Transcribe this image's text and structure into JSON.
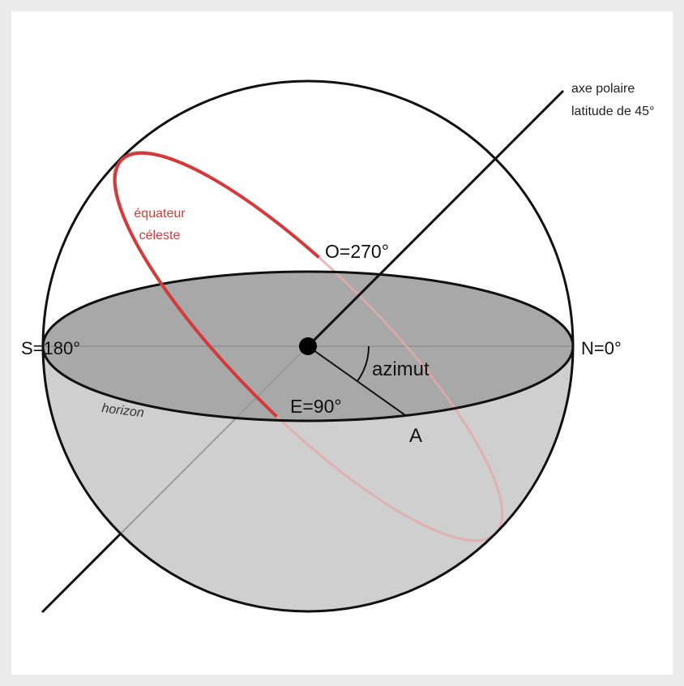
{
  "labels": {
    "axis_line1": "axe polaire",
    "axis_line2": "latitude de 45°",
    "equator_line1": "équateur",
    "equator_line2": "céleste",
    "west": "O=270°",
    "south": "S=180°",
    "north": "N=0°",
    "east": "E=90°",
    "azimuth": "azimut",
    "point": "A",
    "horizon": "horizon"
  }
}
